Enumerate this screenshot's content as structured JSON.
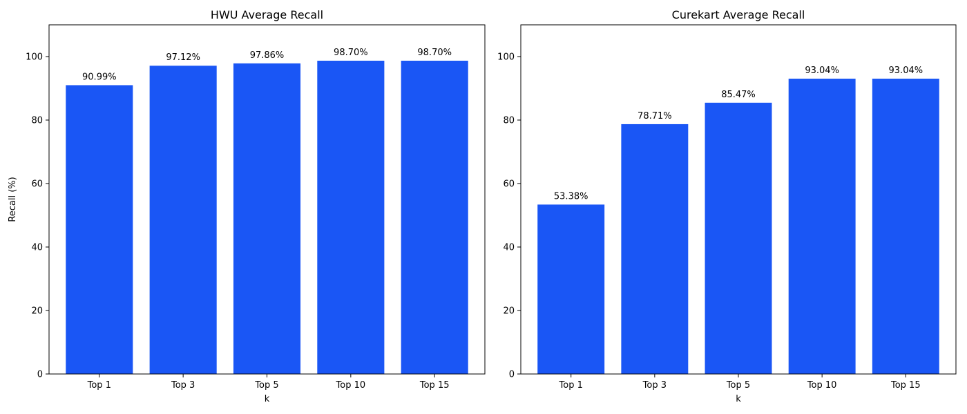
{
  "chart_data": [
    {
      "type": "bar",
      "title": "HWU Average Recall",
      "xlabel": "k",
      "ylabel": "Recall (%)",
      "categories": [
        "Top 1",
        "Top 3",
        "Top 5",
        "Top 10",
        "Top 15"
      ],
      "values": [
        90.99,
        97.12,
        97.86,
        98.7,
        98.7
      ],
      "data_labels": [
        "90.99%",
        "97.12%",
        "97.86%",
        "98.70%",
        "98.70%"
      ],
      "ylim": [
        0,
        110
      ],
      "yticks": [
        0,
        20,
        40,
        60,
        80,
        100
      ],
      "bar_color": "#1a56f5",
      "grid": false
    },
    {
      "type": "bar",
      "title": "Curekart Average Recall",
      "xlabel": "k",
      "ylabel": "",
      "categories": [
        "Top 1",
        "Top 3",
        "Top 5",
        "Top 10",
        "Top 15"
      ],
      "values": [
        53.38,
        78.71,
        85.47,
        93.04,
        93.04
      ],
      "data_labels": [
        "53.38%",
        "78.71%",
        "85.47%",
        "93.04%",
        "93.04%"
      ],
      "ylim": [
        0,
        110
      ],
      "yticks": [
        0,
        20,
        40,
        60,
        80,
        100
      ],
      "bar_color": "#1a56f5",
      "grid": false
    }
  ]
}
